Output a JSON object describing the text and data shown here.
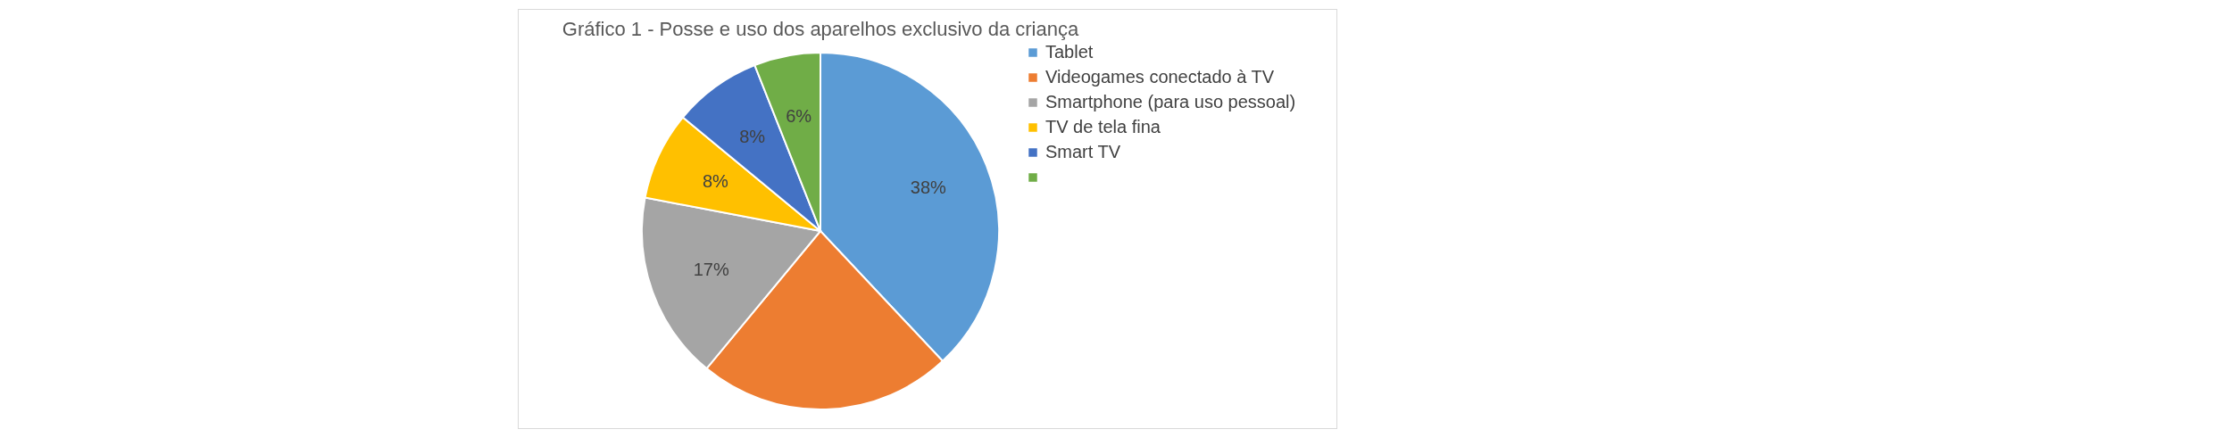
{
  "chart_data": {
    "type": "pie",
    "title": "Gráfico 1  - Posse e uso dos aparelhos exclusivo da criança",
    "categories": [
      "Tablet",
      "Videogames conectado à TV",
      "Smartphone (para uso pessoal)",
      "TV de tela fina",
      "Smart TV",
      null
    ],
    "values": [
      38,
      23,
      17,
      8,
      8,
      6
    ],
    "colors": [
      "#5b9bd5",
      "#ed7d31",
      "#a5a5a5",
      "#ffc000",
      "#4472c4",
      "#70ad47"
    ],
    "value_labels": [
      "38%",
      null,
      "17%",
      "8%",
      "8%",
      "6%"
    ],
    "legend": "right"
  }
}
